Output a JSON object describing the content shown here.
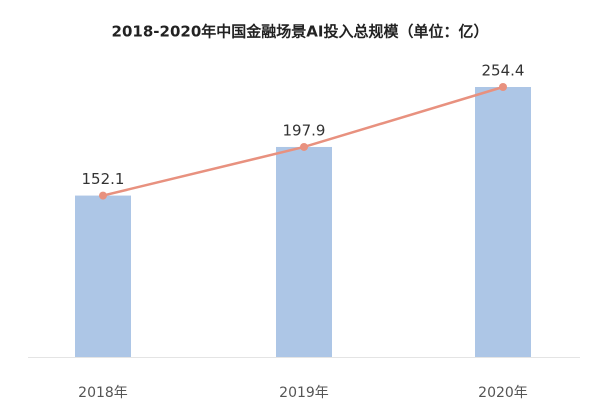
{
  "chart_data": {
    "type": "bar",
    "title": "2018-2020年中国金融场景AI投入总规模（单位：亿）",
    "categories": [
      "2018年",
      "2019年",
      "2020年"
    ],
    "values": [
      152.1,
      197.9,
      254.4
    ],
    "color": "#adc6e6",
    "line": true,
    "line_color": "#e8917f",
    "data_labels": true
  }
}
